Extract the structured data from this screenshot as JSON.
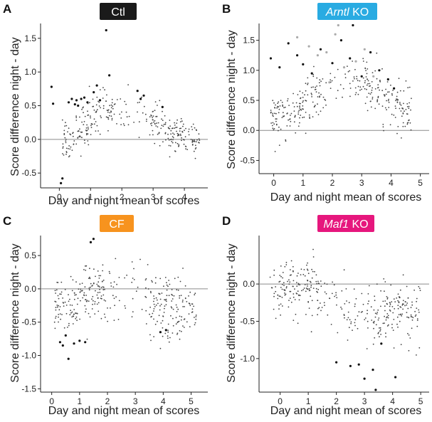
{
  "figure": {
    "panels": [
      {
        "letter": "A",
        "badge": {
          "title": "Ctl",
          "italic": "",
          "suffix": "",
          "color": "#1a1a1a"
        }
      },
      {
        "letter": "B",
        "badge": {
          "title": "",
          "italic": "Arntl",
          "suffix": " KO",
          "color": "#29abe2"
        }
      },
      {
        "letter": "C",
        "badge": {
          "title": "CF",
          "italic": "",
          "suffix": "",
          "color": "#f7931e"
        }
      },
      {
        "letter": "D",
        "badge": {
          "title": "",
          "italic": "Maf1",
          "suffix": " KO",
          "color": "#e6177d"
        }
      }
    ]
  },
  "chart_data": [
    {
      "type": "scatter",
      "title": "Ctl",
      "xlabel": "Day and night mean of scores",
      "ylabel": "Score difference night - day",
      "xlim": [
        -0.6,
        4.75
      ],
      "ylim": [
        -0.72,
        1.72
      ],
      "xticks": [
        0,
        1,
        2,
        3,
        4
      ],
      "yticks": [
        -0.5,
        0.0,
        0.5,
        1.0,
        1.5
      ],
      "ytick_labels": [
        "-0.5",
        "0.0",
        "0.5",
        "1.0",
        "1.5"
      ],
      "zero_line": true,
      "series": [
        {
          "color": "#111111",
          "highlight": true,
          "x": [
            -0.25,
            -0.2,
            0.3,
            0.4,
            0.5,
            0.55,
            0.6,
            0.7,
            0.8,
            0.9,
            1.1,
            1.2,
            1.3,
            1.5,
            1.6,
            2.5,
            2.6,
            2.7,
            3.3,
            0.05,
            0.1
          ],
          "y": [
            0.78,
            0.53,
            0.55,
            0.6,
            0.52,
            0.58,
            0.5,
            0.6,
            0.62,
            0.55,
            0.7,
            0.8,
            0.58,
            1.62,
            0.95,
            0.72,
            0.6,
            0.65,
            0.48,
            -0.65,
            -0.58
          ]
        },
        {
          "color": "#444444",
          "highlight": false,
          "seed": 11,
          "n": 330,
          "profile": "ctl"
        }
      ]
    },
    {
      "type": "scatter",
      "title": "Arntl KO",
      "xlabel": "Day and night mean of scores",
      "ylabel": "Score difference night - day",
      "xlim": [
        -0.5,
        5.3
      ],
      "ylim": [
        -0.72,
        1.78
      ],
      "xticks": [
        0,
        1,
        2,
        3,
        4,
        5
      ],
      "yticks": [
        -0.5,
        0.0,
        0.5,
        1.0,
        1.5
      ],
      "ytick_labels": [
        "-0.5",
        "0.0",
        "0.5",
        "1.0",
        "1.5"
      ],
      "zero_line": true,
      "series": [
        {
          "color": "#111111",
          "highlight": true,
          "x": [
            -0.1,
            0.2,
            0.5,
            0.8,
            1.0,
            1.3,
            1.6,
            2.0,
            2.3,
            2.6,
            3.0,
            3.3,
            3.6,
            3.9,
            4.1,
            2.7
          ],
          "y": [
            1.2,
            1.05,
            1.45,
            1.25,
            1.1,
            0.95,
            1.35,
            1.12,
            1.5,
            1.2,
            0.9,
            1.3,
            1.0,
            0.85,
            0.7,
            1.75
          ]
        },
        {
          "color": "#aaaaaa",
          "highlight": true,
          "x": [
            0.8,
            1.2,
            1.5,
            1.8,
            2.1,
            2.4,
            2.8,
            3.1,
            3.4,
            1.9,
            2.2
          ],
          "y": [
            1.55,
            1.4,
            1.25,
            1.3,
            1.6,
            1.05,
            1.15,
            1.35,
            0.9,
            0.8,
            1.75
          ]
        },
        {
          "color": "#444444",
          "highlight": false,
          "seed": 23,
          "n": 330,
          "profile": "arntl"
        }
      ]
    },
    {
      "type": "scatter",
      "title": "CF",
      "xlabel": "Day and night mean of scores",
      "ylabel": "Score difference night - day",
      "xlim": [
        -0.4,
        5.6
      ],
      "ylim": [
        -1.55,
        0.8
      ],
      "xticks": [
        0,
        1,
        2,
        3,
        4,
        5
      ],
      "yticks": [
        -1.5,
        -1.0,
        -0.5,
        0.0,
        0.5
      ],
      "ytick_labels": [
        "-1.5",
        "-1.0",
        "-0.5",
        "0.0",
        "0.5"
      ],
      "zero_line": true,
      "series": [
        {
          "color": "#111111",
          "highlight": true,
          "x": [
            0.3,
            0.4,
            0.5,
            0.6,
            0.8,
            1.0,
            1.2,
            1.4,
            1.5,
            3.9,
            4.1
          ],
          "y": [
            -0.8,
            -0.85,
            -0.7,
            -1.05,
            -0.82,
            -0.78,
            -0.8,
            0.7,
            0.75,
            -0.65,
            -0.62
          ]
        },
        {
          "color": "#444444",
          "highlight": false,
          "seed": 37,
          "n": 360,
          "profile": "cf"
        }
      ]
    },
    {
      "type": "scatter",
      "title": "Maf1 KO",
      "xlabel": "Day and night mean of scores",
      "ylabel": "Score difference night - day",
      "xlim": [
        -0.75,
        5.3
      ],
      "ylim": [
        -1.45,
        0.65
      ],
      "xticks": [
        0,
        1,
        2,
        3,
        4,
        5
      ],
      "yticks": [
        -1.0,
        -0.5,
        0.0
      ],
      "ytick_labels": [
        "-1.0",
        "-0.5",
        "0.0"
      ],
      "zero_line": true,
      "series": [
        {
          "color": "#111111",
          "highlight": true,
          "x": [
            2.0,
            2.5,
            3.0,
            3.4,
            3.6,
            4.1,
            2.8,
            3.3
          ],
          "y": [
            -1.05,
            -1.1,
            -1.27,
            -1.42,
            -0.8,
            -1.25,
            -1.08,
            -1.15
          ]
        },
        {
          "color": "#444444",
          "highlight": false,
          "seed": 53,
          "n": 360,
          "profile": "maf1"
        }
      ]
    }
  ]
}
